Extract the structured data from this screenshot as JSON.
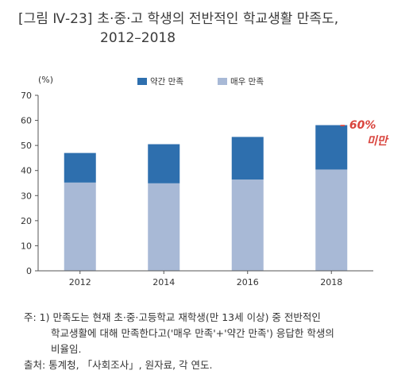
{
  "figure": {
    "code": "[그림 Ⅳ-23]",
    "title_line1": "초·중·고 학생의 전반적인 학교생활 만족도,",
    "title_line2": "2012–2018"
  },
  "chart_data": {
    "type": "bar",
    "stacked": true,
    "unit_label": "(%)",
    "categories": [
      "2012",
      "2014",
      "2016",
      "2018"
    ],
    "series": [
      {
        "name": "매우 만족",
        "values": [
          35.2,
          34.9,
          36.4,
          40.4
        ],
        "color": "#a8b9d6"
      },
      {
        "name": "약간 만족",
        "values": [
          11.8,
          15.6,
          17.0,
          17.7
        ],
        "color": "#2e6fae"
      }
    ],
    "ylim": [
      0,
      70
    ],
    "yticks": [
      0,
      10,
      20,
      30,
      40,
      50,
      60,
      70
    ],
    "legend_position": "top",
    "grid": false,
    "annotation": {
      "line1": "– 60%",
      "line2": "미만",
      "color": "#d9443d"
    }
  },
  "notes": {
    "note1_line1": "주: 1) 만족도는 현재 초·중·고등학교 재학생(만 13세 이상) 중 전반적인",
    "note1_line2": "학교생활에 대해 만족한다고('매우 만족'+'약간 만족') 응답한 학생의",
    "note1_line3": "비율임.",
    "source": "출처: 통계청, 「사회조사」, 원자료, 각 연도."
  }
}
